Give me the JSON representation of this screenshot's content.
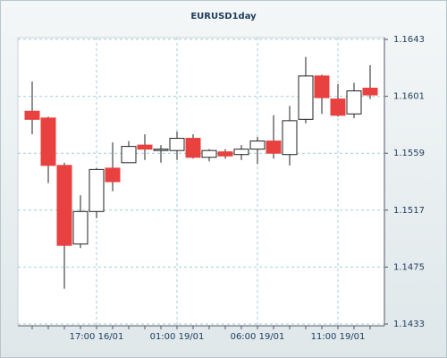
{
  "chart_data": {
    "type": "candlestick",
    "title": "EURUSD1day",
    "categories": [
      null,
      null,
      null,
      null,
      "17:00 16/01",
      null,
      null,
      null,
      null,
      "01:00 19/01",
      null,
      null,
      null,
      null,
      "06:00 19/01",
      null,
      null,
      null,
      null,
      "11:00 19/01",
      null,
      null
    ],
    "open": [
      1.159,
      1.1585,
      1.155,
      1.1492,
      1.1516,
      1.1548,
      1.1552,
      1.1565,
      1.1561,
      1.1561,
      1.157,
      1.1556,
      1.156,
      1.1558,
      1.1562,
      1.1568,
      1.1558,
      1.1584,
      1.1616,
      1.1599,
      1.1588,
      1.1607
    ],
    "high": [
      1.1612,
      1.1586,
      1.1552,
      1.1528,
      1.1548,
      1.1567,
      1.1568,
      1.1573,
      1.1565,
      1.1575,
      1.1573,
      1.1562,
      1.1562,
      1.1565,
      1.1571,
      1.1587,
      1.1594,
      1.163,
      1.1617,
      1.161,
      1.1611,
      1.1624
    ],
    "low": [
      1.1573,
      1.1537,
      1.1459,
      1.1489,
      1.1511,
      1.1531,
      1.1552,
      1.1554,
      1.1552,
      1.1554,
      1.1555,
      1.1553,
      1.1555,
      1.1554,
      1.1551,
      1.1555,
      1.155,
      1.1581,
      1.1588,
      1.1586,
      1.1585,
      1.1599
    ],
    "close": [
      1.1584,
      1.155,
      1.1491,
      1.1516,
      1.1547,
      1.1538,
      1.1564,
      1.1562,
      1.1562,
      1.157,
      1.1556,
      1.1561,
      1.1557,
      1.1562,
      1.1568,
      1.1559,
      1.1583,
      1.1616,
      1.16,
      1.1587,
      1.1605,
      1.1602
    ],
    "up_color": "#ffffff",
    "down_color": "#e8413f",
    "ylim": [
      1.1433,
      1.1643
    ],
    "yticks": [
      1.1643,
      1.1601,
      1.1559,
      1.1517,
      1.1475,
      1.1433
    ],
    "grid": true
  }
}
